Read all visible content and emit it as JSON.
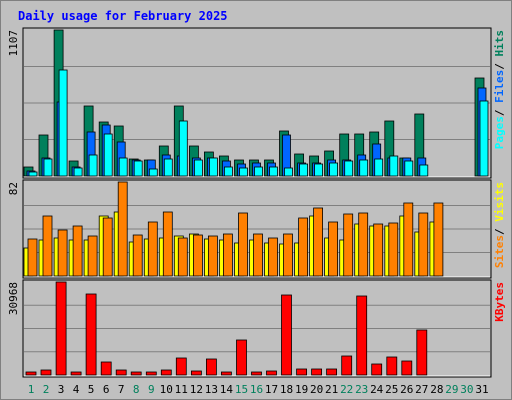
{
  "colors": {
    "frame_bg": "#c0c0c0",
    "plot_bg": "#c0c0c0",
    "grid": "#808080",
    "title": "#0000ff",
    "weekend_label": "#00805c",
    "weekday_label": "#000000",
    "pages": "#00ffff",
    "files": "#0066ff",
    "hits": "#00805c",
    "visits": "#ffff00",
    "sites": "#ff8000",
    "kbytes": "#ff0000"
  },
  "chart_data": [
    {
      "type": "bar",
      "title": "Daily usage for February 2025",
      "panel": "hits-files-pages",
      "categories": [
        "1",
        "2",
        "3",
        "4",
        "5",
        "6",
        "7",
        "8",
        "9",
        "10",
        "11",
        "12",
        "13",
        "14",
        "15",
        "16",
        "17",
        "18",
        "19",
        "20",
        "21",
        "22",
        "23",
        "24",
        "25",
        "26",
        "27",
        "28",
        "29",
        "30",
        "31"
      ],
      "y_max_label": "1107",
      "ylim": [
        0,
        1107
      ],
      "right_label": [
        "Pages",
        "/",
        "Files",
        "/",
        "Hits"
      ],
      "series": [
        {
          "name": "Hits",
          "color": "#00805c",
          "values": [
            70,
            310,
            1107,
            110,
            530,
            410,
            380,
            130,
            120,
            230,
            530,
            230,
            180,
            150,
            120,
            120,
            120,
            340,
            170,
            150,
            190,
            320,
            320,
            330,
            420,
            140,
            470,
            0,
            0,
            0,
            740
          ]
        },
        {
          "name": "Files",
          "color": "#0066ff",
          "values": [
            40,
            140,
            560,
            70,
            330,
            390,
            260,
            120,
            120,
            160,
            150,
            140,
            140,
            110,
            90,
            100,
            100,
            310,
            100,
            100,
            120,
            120,
            160,
            240,
            140,
            140,
            140,
            0,
            0,
            0,
            670
          ]
        },
        {
          "name": "Pages",
          "color": "#00ffff",
          "values": [
            30,
            130,
            800,
            60,
            160,
            320,
            140,
            110,
            50,
            130,
            420,
            120,
            140,
            70,
            60,
            70,
            70,
            60,
            90,
            90,
            100,
            110,
            120,
            130,
            150,
            110,
            80,
            0,
            0,
            0,
            570
          ]
        }
      ]
    },
    {
      "type": "bar",
      "panel": "sites-visits",
      "categories": [
        "1",
        "2",
        "3",
        "4",
        "5",
        "6",
        "7",
        "8",
        "9",
        "10",
        "11",
        "12",
        "13",
        "14",
        "15",
        "16",
        "17",
        "18",
        "19",
        "20",
        "21",
        "22",
        "23",
        "24",
        "25",
        "26",
        "27",
        "28",
        "29",
        "30",
        "31"
      ],
      "y_max_label": "82",
      "ylim": [
        0,
        82
      ],
      "right_label": [
        "Sites",
        "/",
        "Visits"
      ],
      "series": [
        {
          "name": "Visits",
          "color": "#ffff00",
          "values": [
            24,
            31,
            33,
            31,
            31,
            52,
            56,
            30,
            32,
            33,
            35,
            37,
            32,
            31,
            29,
            31,
            29,
            28,
            29,
            52,
            33,
            31,
            45,
            44,
            44,
            52,
            38,
            47,
            0,
            0,
            0
          ]
        },
        {
          "name": "Sites",
          "color": "#ff8000",
          "values": [
            32,
            52,
            40,
            44,
            35,
            51,
            82,
            36,
            47,
            56,
            33,
            36,
            35,
            37,
            55,
            37,
            33,
            37,
            51,
            59,
            47,
            54,
            55,
            45,
            46,
            64,
            55,
            64,
            0,
            0,
            0
          ]
        }
      ]
    },
    {
      "type": "bar",
      "panel": "kbytes",
      "categories": [
        "1",
        "2",
        "3",
        "4",
        "5",
        "6",
        "7",
        "8",
        "9",
        "10",
        "11",
        "12",
        "13",
        "14",
        "15",
        "16",
        "17",
        "18",
        "19",
        "20",
        "21",
        "22",
        "23",
        "24",
        "25",
        "26",
        "27",
        "28",
        "29",
        "30",
        "31"
      ],
      "y_max_label": "30968",
      "ylim": [
        0,
        30968
      ],
      "right_label": [
        "KBytes"
      ],
      "series": [
        {
          "name": "KBytes",
          "color": "#ff0000",
          "values": [
            1100,
            1800,
            30968,
            1000,
            27000,
            4200,
            1700,
            1000,
            1000,
            1700,
            5500,
            1300,
            5300,
            1000,
            11500,
            1000,
            1400,
            26700,
            2100,
            2000,
            2000,
            6400,
            26200,
            3600,
            6100,
            4800,
            14900,
            0,
            0,
            0,
            0
          ]
        }
      ]
    }
  ],
  "x_axis": {
    "labels": [
      "1",
      "2",
      "3",
      "4",
      "5",
      "6",
      "7",
      "8",
      "9",
      "10",
      "11",
      "12",
      "13",
      "14",
      "15",
      "16",
      "17",
      "18",
      "19",
      "20",
      "21",
      "22",
      "23",
      "24",
      "25",
      "26",
      "27",
      "28",
      "29",
      "30",
      "31"
    ],
    "weekend_days": [
      1,
      2,
      8,
      9,
      15,
      16,
      22,
      23,
      29,
      30
    ]
  }
}
